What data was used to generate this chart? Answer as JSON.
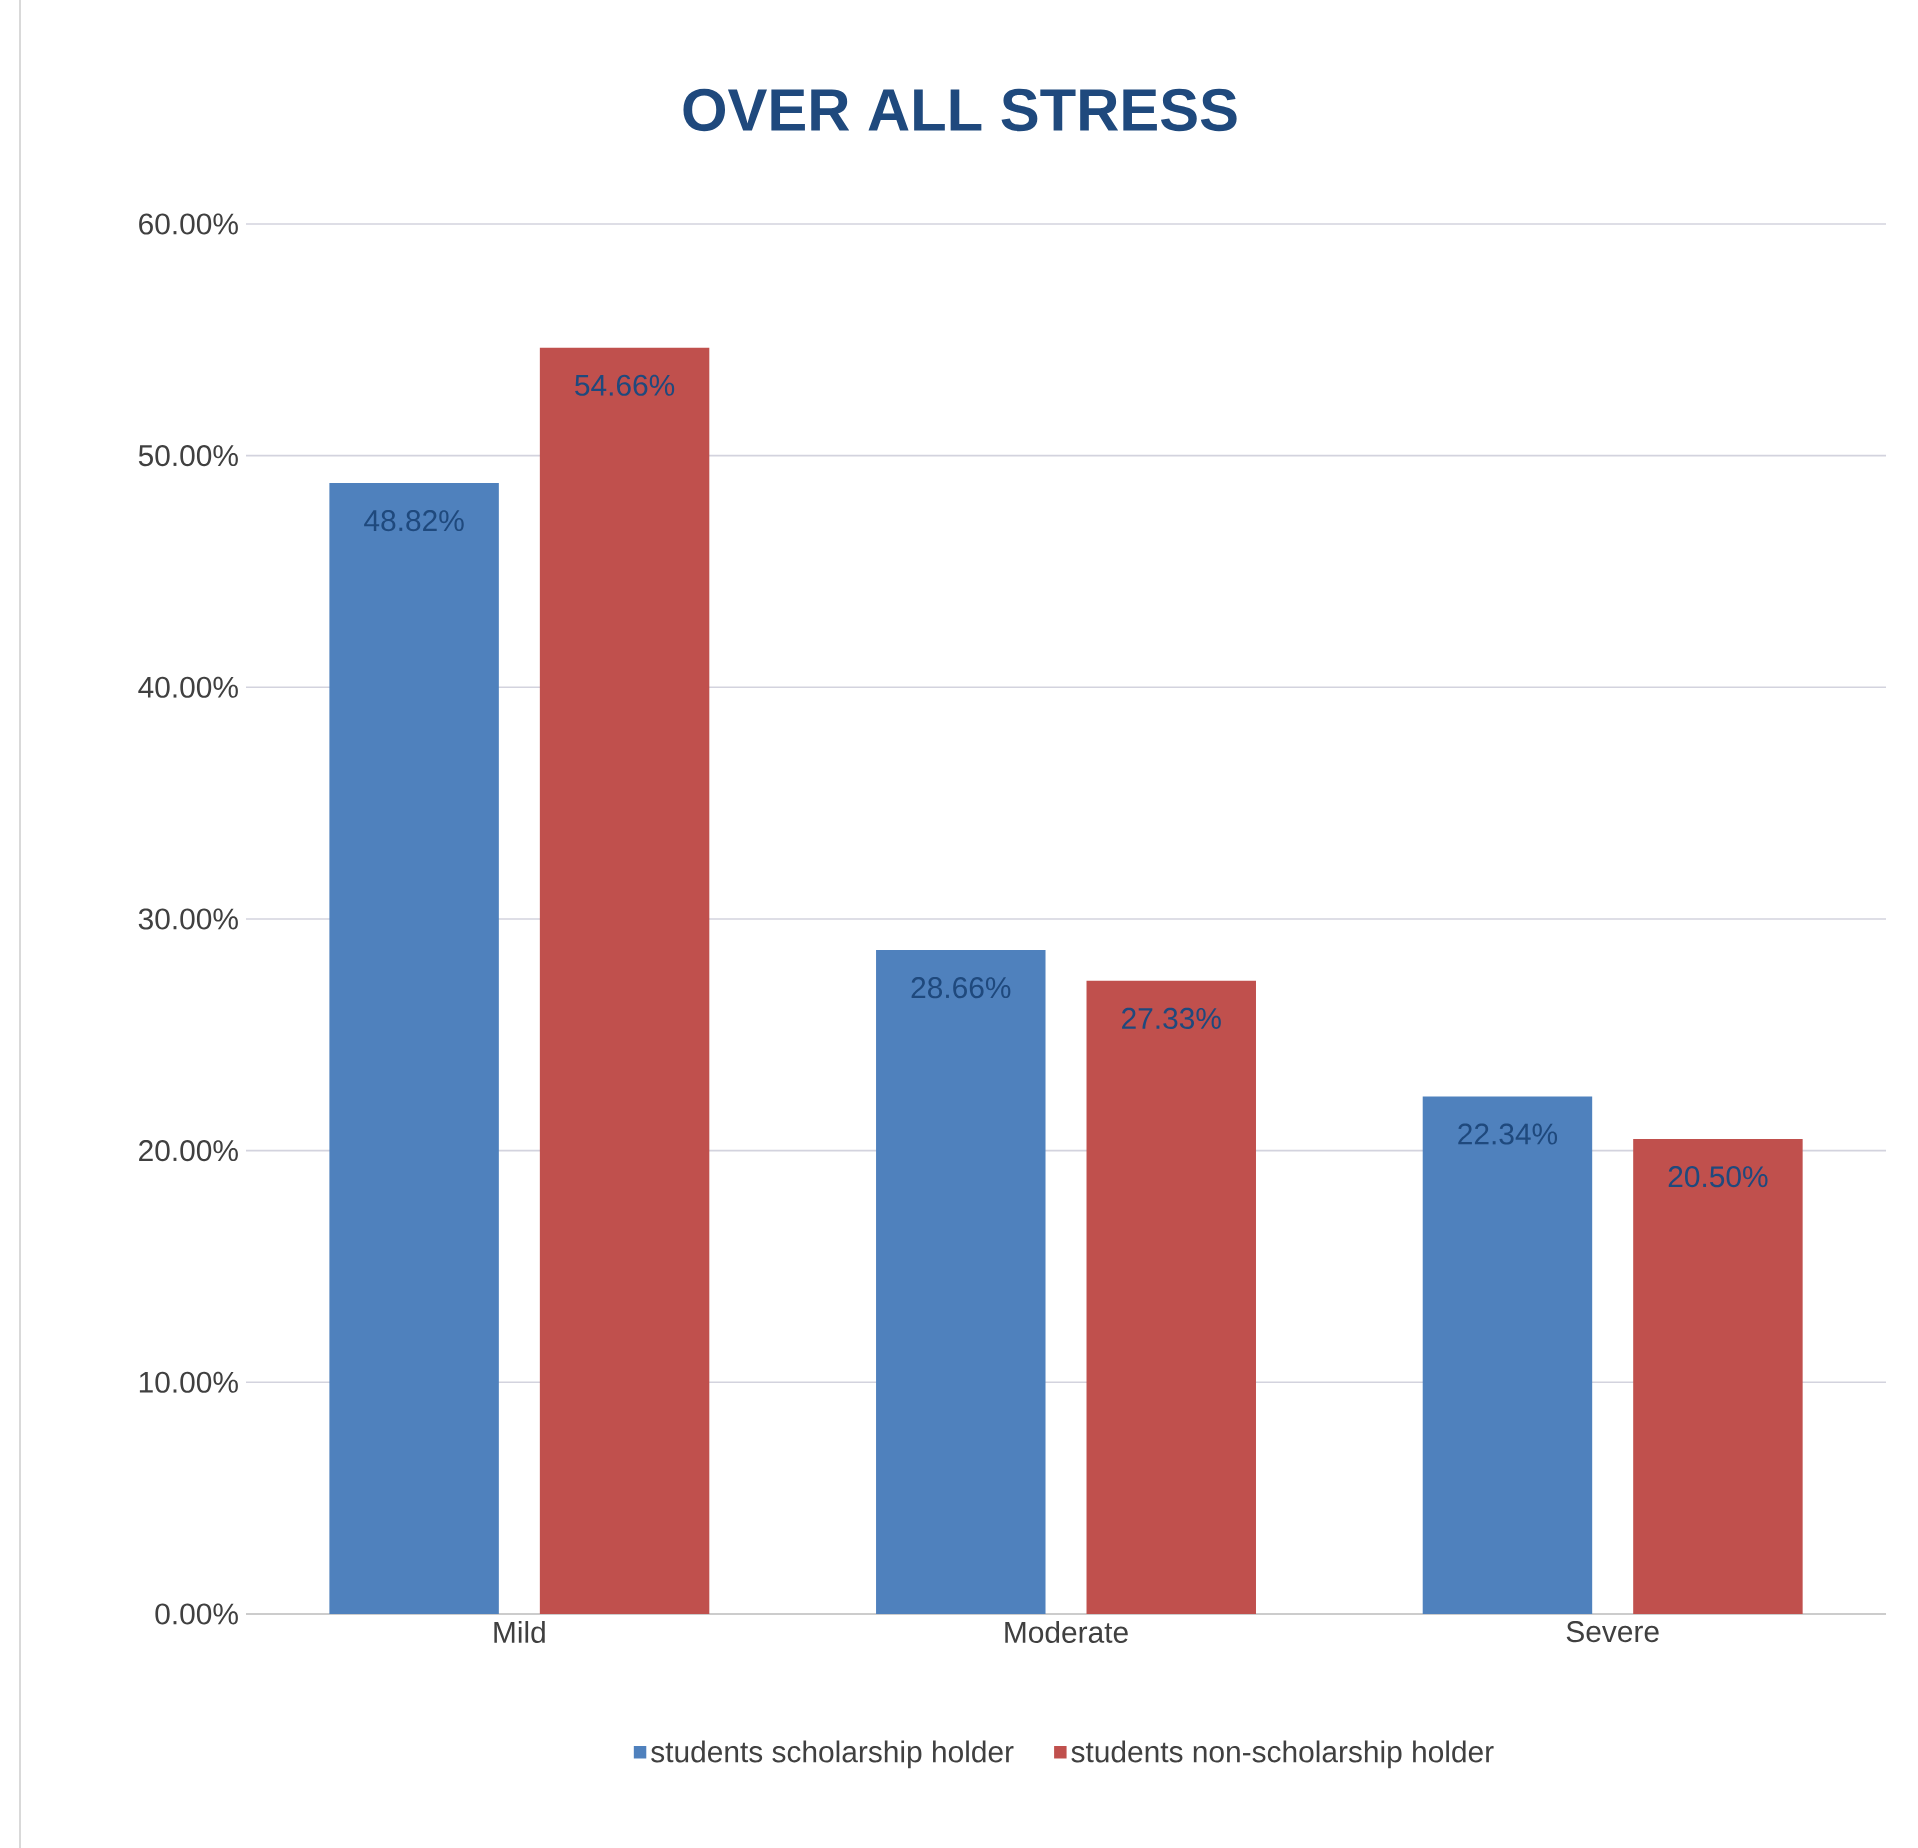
{
  "chart_data": {
    "type": "bar",
    "title": "OVER ALL STRESS",
    "categories": [
      "Mild",
      "Moderate",
      "Severe"
    ],
    "series": [
      {
        "name": "students scholarship holder",
        "color": "#4f81bd",
        "values": [
          48.82,
          28.66,
          22.34
        ],
        "value_labels": [
          "48.82%",
          "28.66%",
          "22.34%"
        ]
      },
      {
        "name": "students non-scholarship holder",
        "color": "#c0504d",
        "values": [
          54.66,
          27.33,
          20.5
        ],
        "value_labels": [
          "54.66%",
          "27.33%",
          "20.50%"
        ]
      }
    ],
    "ylim": [
      0,
      60
    ],
    "yticks": [
      {
        "value": 0,
        "label": "0.00%"
      },
      {
        "value": 10,
        "label": "10.00%"
      },
      {
        "value": 20,
        "label": "20.00%"
      },
      {
        "value": 30,
        "label": "30.00%"
      },
      {
        "value": 40,
        "label": "40.00%"
      },
      {
        "value": 50,
        "label": "50.00%"
      },
      {
        "value": 60,
        "label": "60.00%"
      }
    ],
    "grid": "y",
    "legend": "bottom"
  }
}
